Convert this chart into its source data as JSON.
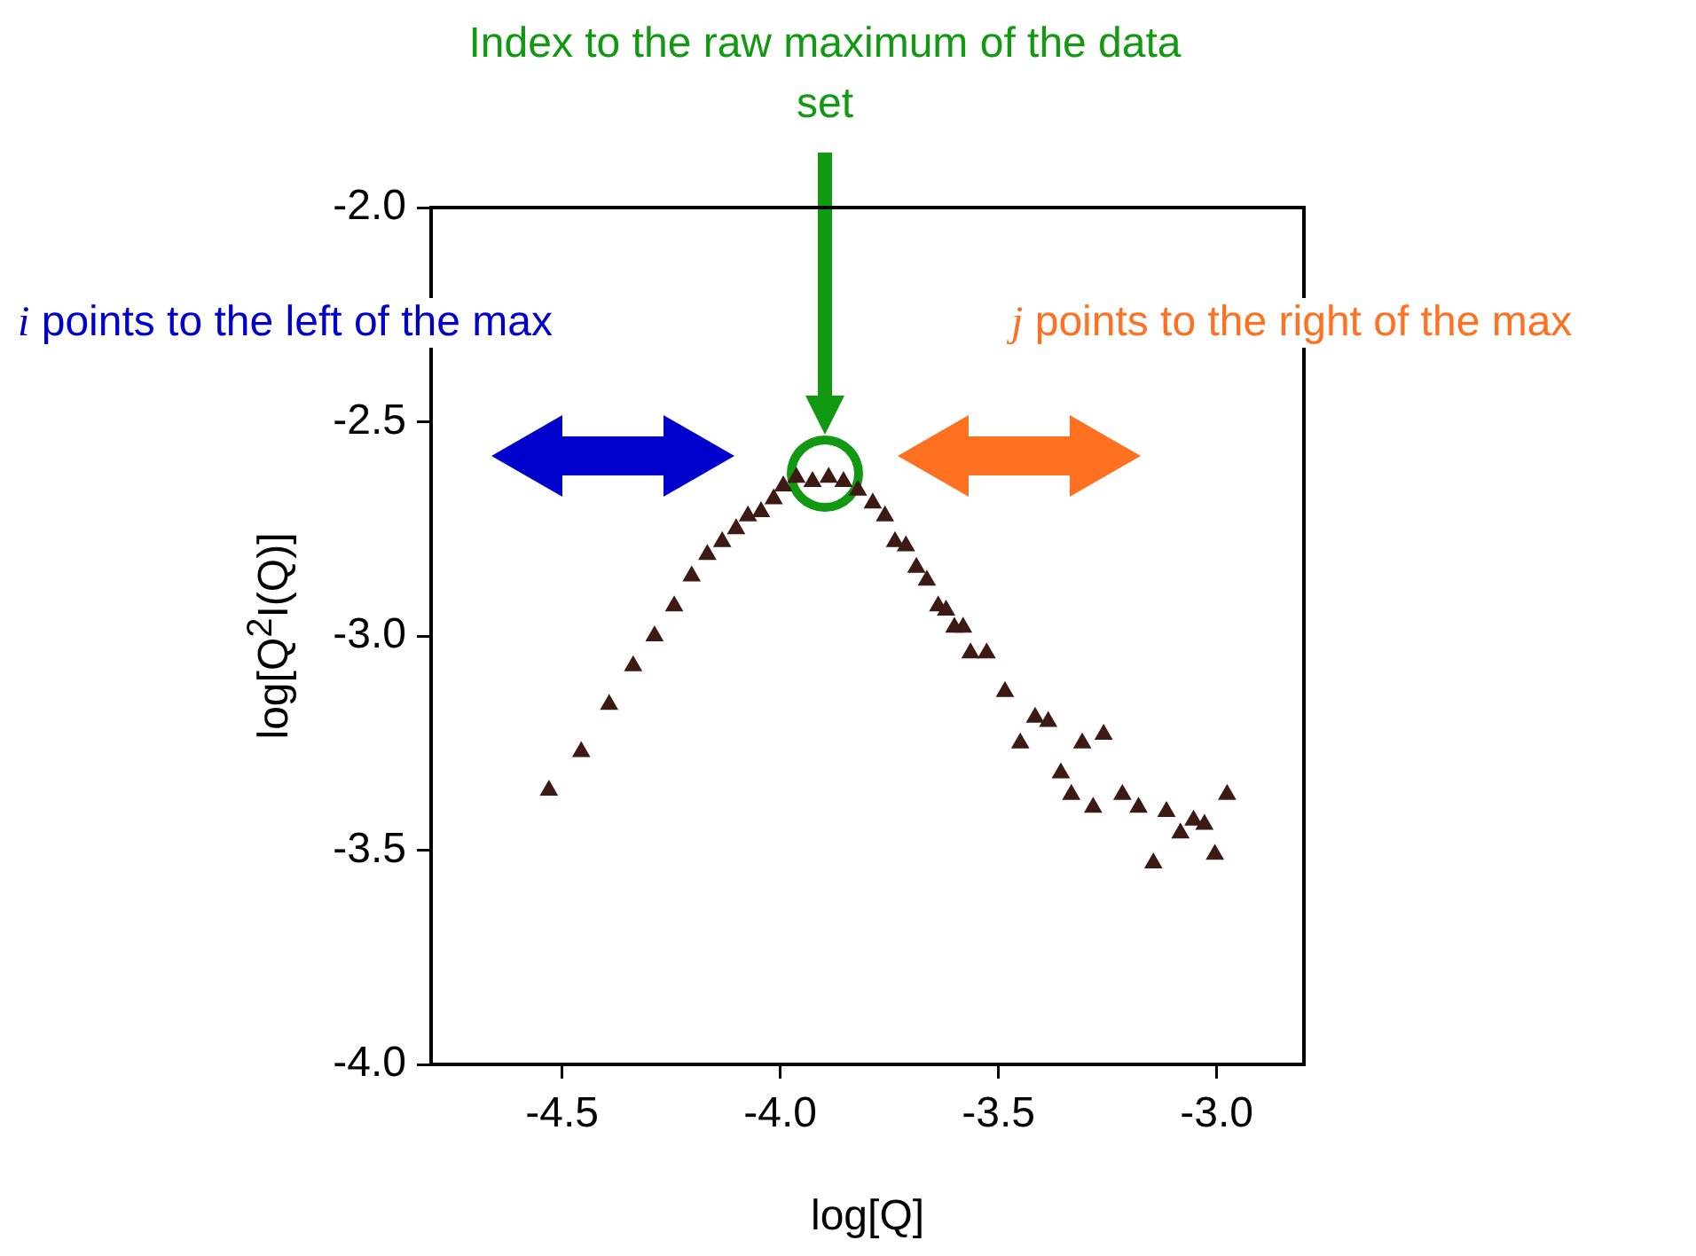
{
  "chart_data": {
    "type": "scatter",
    "xlabel": "log[Q]",
    "ylabel": "log[Q$^{2}$I(Q)]",
    "xlim": [
      -4.8,
      -2.8
    ],
    "xticks": [
      -4.5,
      {
        "value": -4,
        "label": "-4.0"
      },
      -3.5,
      {
        "value": -3,
        "label": "-3.0"
      }
    ],
    "ylim": [
      -4.0,
      -2.0
    ],
    "yticks": [
      {
        "value": -4,
        "label": "-4.0"
      },
      -3.5,
      {
        "value": -3,
        "label": "-3.0"
      },
      -2.5,
      {
        "value": -2,
        "label": "-2.0"
      }
    ],
    "grid": false,
    "legend": false,
    "marker": "triangle",
    "annotations": [
      "Index to the raw maximum of the data set",
      "i points to the left of the max",
      "j points to the right of the max"
    ],
    "series": [
      {
        "color": "#3d1a14",
        "x": [
          -4.53,
          -4.456,
          -4.392,
          -4.337,
          -4.288,
          -4.243,
          -4.203,
          -4.167,
          -4.133,
          -4.101,
          -4.074,
          -4.044,
          -4.015,
          -3.993,
          -3.963,
          -3.926,
          -3.889,
          -3.855,
          -3.822,
          -3.788,
          -3.76,
          -3.737,
          -3.712,
          -3.688,
          -3.664,
          -3.638,
          -3.62,
          -3.601,
          -3.581,
          -3.564,
          -3.527,
          -3.485,
          -3.45,
          -3.416,
          -3.386,
          -3.357,
          -3.333,
          -3.308,
          -3.283,
          -3.259,
          -3.216,
          -3.179,
          -3.145,
          -3.115,
          -3.083,
          -3.053,
          -3.028,
          -3.004,
          -2.976
        ],
        "values": [
          -3.36,
          -3.27,
          -3.16,
          -3.07,
          -3.0,
          -2.93,
          -2.86,
          -2.81,
          -2.78,
          -2.75,
          -2.72,
          -2.71,
          -2.68,
          -2.65,
          -2.63,
          -2.64,
          -2.63,
          -2.64,
          -2.66,
          -2.69,
          -2.72,
          -2.78,
          -2.79,
          -2.84,
          -2.87,
          -2.93,
          -2.94,
          -2.98,
          -2.98,
          -3.04,
          -3.04,
          -3.13,
          -3.25,
          -3.19,
          -3.2,
          -3.32,
          -3.37,
          -3.25,
          -3.4,
          -3.23,
          -3.37,
          -3.4,
          -3.53,
          -3.41,
          -3.46,
          -3.43,
          -3.44,
          -3.51,
          -3.37
        ]
      }
    ]
  }
}
